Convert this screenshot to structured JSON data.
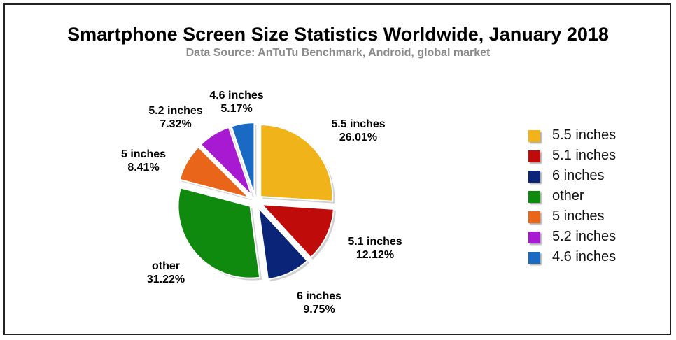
{
  "chart_data": {
    "type": "pie",
    "title": "Smartphone Screen Size Statistics Worldwide, January 2018",
    "subtitle": "Data Source: AnTuTu Benchmark, Android, global market",
    "slices": [
      {
        "label": "5.5 inches",
        "value": 26.01,
        "value_label": "26.01%",
        "color": "#f0b31a"
      },
      {
        "label": "5.1 inches",
        "value": 12.12,
        "value_label": "12.12%",
        "color": "#c00b0b"
      },
      {
        "label": "6 inches",
        "value": 9.75,
        "value_label": "9.75%",
        "color": "#0a2478"
      },
      {
        "label": "other",
        "value": 31.22,
        "value_label": "31.22%",
        "color": "#0f8a0f"
      },
      {
        "label": "5 inches",
        "value": 8.41,
        "value_label": "8.41%",
        "color": "#e8651a"
      },
      {
        "label": "5.2 inches",
        "value": 7.32,
        "value_label": "7.32%",
        "color": "#a81ad1"
      },
      {
        "label": "4.6 inches",
        "value": 5.17,
        "value_label": "5.17%",
        "color": "#1a6ac4"
      }
    ],
    "legend_position": "right",
    "exploded": true
  }
}
